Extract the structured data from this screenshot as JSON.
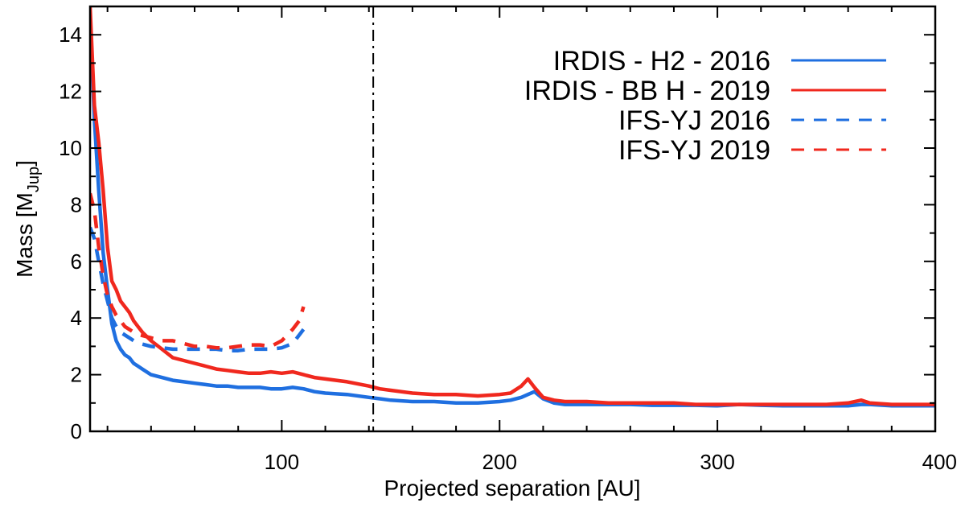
{
  "chart_data": {
    "type": "line",
    "title": "",
    "xlabel": "Projected separation [AU]",
    "ylabel_main": "Mass [M",
    "ylabel_sub": "Jup",
    "ylabel_close": "]",
    "xlim": [
      12,
      400
    ],
    "ylim": [
      0,
      15
    ],
    "xticks": [
      100,
      200,
      300,
      400
    ],
    "xtick_labels": [
      "100",
      "200",
      "300",
      "400"
    ],
    "yticks": [
      0,
      2,
      4,
      6,
      8,
      10,
      12,
      14
    ],
    "ytick_labels": [
      "0",
      "2",
      "4",
      "6",
      "8",
      "10",
      "12",
      "14"
    ],
    "vline_x": 142,
    "legend_position": "top-right",
    "series": [
      {
        "name": "IRDIS - H2 - 2016",
        "color": "#1f6fe0",
        "dash": "solid",
        "x": [
          12,
          14,
          16,
          18,
          20,
          22,
          24,
          26,
          28,
          30,
          32,
          34,
          36,
          40,
          45,
          50,
          55,
          60,
          65,
          70,
          75,
          80,
          85,
          90,
          95,
          100,
          105,
          110,
          115,
          120,
          130,
          140,
          145,
          150,
          160,
          170,
          180,
          190,
          200,
          205,
          210,
          213,
          216,
          220,
          225,
          230,
          240,
          250,
          260,
          270,
          280,
          290,
          300,
          310,
          320,
          330,
          340,
          350,
          360,
          366,
          370,
          380,
          390,
          400
        ],
        "y": [
          14.5,
          11.0,
          8.5,
          6.3,
          5.0,
          3.8,
          3.2,
          2.9,
          2.7,
          2.6,
          2.4,
          2.3,
          2.2,
          2.0,
          1.9,
          1.8,
          1.75,
          1.7,
          1.65,
          1.6,
          1.6,
          1.55,
          1.55,
          1.55,
          1.5,
          1.5,
          1.55,
          1.5,
          1.4,
          1.35,
          1.3,
          1.2,
          1.15,
          1.1,
          1.05,
          1.05,
          1.0,
          1.0,
          1.05,
          1.1,
          1.2,
          1.3,
          1.4,
          1.15,
          1.0,
          0.95,
          0.95,
          0.95,
          0.95,
          0.92,
          0.92,
          0.92,
          0.9,
          0.95,
          0.92,
          0.9,
          0.9,
          0.9,
          0.9,
          0.95,
          0.95,
          0.9,
          0.9,
          0.9
        ]
      },
      {
        "name": "IRDIS - BB H - 2019",
        "color": "#f0281e",
        "dash": "solid",
        "x": [
          12,
          14,
          16,
          18,
          20,
          22,
          24,
          26,
          28,
          30,
          32,
          34,
          36,
          40,
          45,
          50,
          55,
          60,
          65,
          70,
          75,
          80,
          85,
          90,
          95,
          100,
          105,
          110,
          115,
          120,
          130,
          140,
          145,
          150,
          160,
          170,
          180,
          190,
          200,
          205,
          210,
          213,
          216,
          220,
          225,
          230,
          240,
          250,
          260,
          270,
          280,
          290,
          300,
          310,
          320,
          330,
          340,
          350,
          360,
          366,
          370,
          380,
          390,
          400
        ],
        "y": [
          15.0,
          11.5,
          10.2,
          8.5,
          6.5,
          5.3,
          5.0,
          4.6,
          4.4,
          4.2,
          3.9,
          3.7,
          3.5,
          3.2,
          2.9,
          2.6,
          2.5,
          2.4,
          2.3,
          2.2,
          2.15,
          2.1,
          2.05,
          2.05,
          2.1,
          2.05,
          2.1,
          2.0,
          1.9,
          1.85,
          1.75,
          1.6,
          1.5,
          1.45,
          1.35,
          1.3,
          1.3,
          1.25,
          1.3,
          1.35,
          1.6,
          1.85,
          1.55,
          1.2,
          1.1,
          1.05,
          1.05,
          1.0,
          1.0,
          1.0,
          1.0,
          0.95,
          0.95,
          0.95,
          0.95,
          0.95,
          0.95,
          0.95,
          1.0,
          1.1,
          1.0,
          0.95,
          0.95,
          0.95
        ]
      },
      {
        "name": "IFS-YJ 2016",
        "color": "#1f6fe0",
        "dash": "dashed",
        "x": [
          12,
          14,
          16,
          18,
          20,
          22,
          24,
          26,
          28,
          30,
          32,
          35,
          40,
          45,
          50,
          55,
          60,
          65,
          70,
          75,
          80,
          85,
          90,
          95,
          100,
          105,
          110
        ],
        "y": [
          7.2,
          6.8,
          6.0,
          5.2,
          4.6,
          4.0,
          3.7,
          3.5,
          3.4,
          3.3,
          3.2,
          3.1,
          3.0,
          2.95,
          2.9,
          2.9,
          2.9,
          2.9,
          2.9,
          2.85,
          2.85,
          2.9,
          2.9,
          2.9,
          2.95,
          3.1,
          3.6
        ]
      },
      {
        "name": "IFS-YJ 2019",
        "color": "#f0281e",
        "dash": "dashed",
        "x": [
          12,
          14,
          16,
          18,
          20,
          22,
          24,
          26,
          28,
          30,
          32,
          35,
          40,
          45,
          50,
          55,
          60,
          65,
          70,
          75,
          80,
          85,
          90,
          95,
          100,
          105,
          108,
          110
        ],
        "y": [
          8.4,
          7.8,
          6.5,
          5.5,
          4.8,
          4.4,
          4.1,
          3.9,
          3.7,
          3.6,
          3.5,
          3.4,
          3.3,
          3.2,
          3.2,
          3.1,
          3.0,
          3.0,
          2.95,
          2.95,
          3.0,
          3.05,
          3.05,
          3.0,
          3.2,
          3.6,
          3.9,
          4.4
        ]
      }
    ]
  }
}
